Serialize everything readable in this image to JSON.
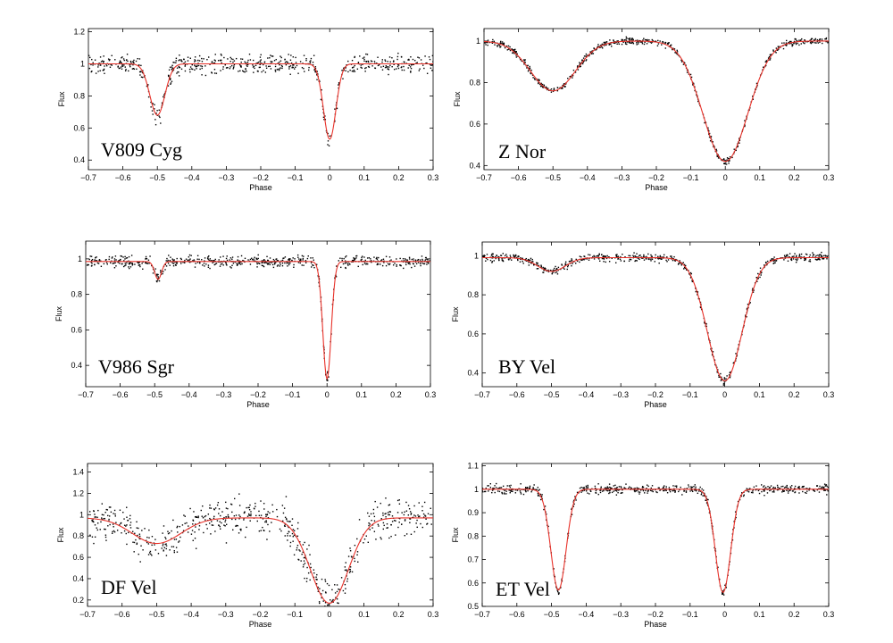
{
  "chart_data": [
    {
      "type": "scatter",
      "label": "V809 Cyg",
      "xlabel": "Phase",
      "ylabel": "Flux",
      "xlim": [
        -0.7,
        0.3
      ],
      "ylim": [
        0.34,
        1.22
      ],
      "xticks": [
        -0.7,
        -0.6,
        -0.5,
        -0.4,
        -0.3,
        -0.2,
        -0.1,
        0,
        0.1,
        0.2,
        0.3
      ],
      "yticks": [
        0.4,
        0.6,
        0.8,
        1,
        1.2
      ],
      "xtick_labels": [
        "−0.7",
        "−0.6",
        "−0.5",
        "−0.4",
        "−0.3",
        "−0.2",
        "−0.1",
        "0",
        "0.1",
        "0.2",
        "0.3"
      ],
      "ytick_labels": [
        "0.4",
        "0.6",
        "0.8",
        "1",
        "1.2"
      ],
      "grid": false,
      "model_color": "#e8322a",
      "marker_color": "#000000",
      "baseline_flux": 1.0,
      "noise_amplitude": 0.055,
      "eclipses": [
        {
          "phase": -0.5,
          "depth": 0.32,
          "width": 0.022
        },
        {
          "phase": 0.0,
          "depth": 0.47,
          "width": 0.018
        }
      ]
    },
    {
      "type": "scatter",
      "label": "Z Nor",
      "xlabel": "Phase",
      "ylabel": "Flux",
      "xlim": [
        -0.7,
        0.3
      ],
      "ylim": [
        0.38,
        1.06
      ],
      "xticks": [
        -0.7,
        -0.6,
        -0.5,
        -0.4,
        -0.3,
        -0.2,
        -0.1,
        0,
        0.1,
        0.2,
        0.3
      ],
      "yticks": [
        0.4,
        0.6,
        0.8,
        1
      ],
      "xtick_labels": [
        "−0.7",
        "−0.6",
        "−0.5",
        "−0.4",
        "−0.3",
        "−0.2",
        "−0.1",
        "0",
        "0.1",
        "0.2",
        "0.3"
      ],
      "ytick_labels": [
        "0.4",
        "0.6",
        "0.8",
        "1"
      ],
      "grid": false,
      "model_color": "#e8322a",
      "marker_color": "#000000",
      "baseline_flux": 1.0,
      "noise_amplitude": 0.015,
      "eclipses": [
        {
          "phase": -0.5,
          "depth": 0.24,
          "width": 0.065
        },
        {
          "phase": 0.0,
          "depth": 0.58,
          "width": 0.065
        }
      ]
    },
    {
      "type": "scatter",
      "label": "V986 Sgr",
      "xlabel": "Phase",
      "ylabel": "Flux",
      "xlim": [
        -0.7,
        0.3
      ],
      "ylim": [
        0.28,
        1.1
      ],
      "xticks": [
        -0.7,
        -0.6,
        -0.5,
        -0.4,
        -0.3,
        -0.2,
        -0.1,
        0,
        0.1,
        0.2,
        0.3
      ],
      "yticks": [
        0.4,
        0.6,
        0.8,
        1
      ],
      "xtick_labels": [
        "−0.7",
        "−0.6",
        "−0.5",
        "−0.4",
        "−0.3",
        "−0.2",
        "−0.1",
        "0",
        "0.1",
        "0.2",
        "0.3"
      ],
      "ytick_labels": [
        "0.4",
        "0.6",
        "0.8",
        "1"
      ],
      "grid": false,
      "model_color": "#e8322a",
      "marker_color": "#000000",
      "baseline_flux": 0.985,
      "noise_amplitude": 0.03,
      "eclipses": [
        {
          "phase": -0.49,
          "depth": 0.1,
          "width": 0.01
        },
        {
          "phase": 0.0,
          "depth": 0.66,
          "width": 0.012
        }
      ]
    },
    {
      "type": "scatter",
      "label": "BY Vel",
      "xlabel": "Phase",
      "ylabel": "Flux",
      "xlim": [
        -0.7,
        0.3
      ],
      "ylim": [
        0.33,
        1.07
      ],
      "xticks": [
        -0.7,
        -0.6,
        -0.5,
        -0.4,
        -0.3,
        -0.2,
        -0.1,
        0,
        0.1,
        0.2,
        0.3
      ],
      "yticks": [
        0.4,
        0.6,
        0.8,
        1
      ],
      "xtick_labels": [
        "−0.7",
        "−0.6",
        "−0.5",
        "−0.4",
        "−0.3",
        "−0.2",
        "−0.1",
        "0",
        "0.1",
        "0.2",
        "0.3"
      ],
      "ytick_labels": [
        "0.4",
        "0.6",
        "0.8",
        "1"
      ],
      "grid": false,
      "model_color": "#e8322a",
      "marker_color": "#000000",
      "baseline_flux": 0.99,
      "noise_amplitude": 0.018,
      "eclipses": [
        {
          "phase": -0.5,
          "depth": 0.07,
          "width": 0.04
        },
        {
          "phase": 0.0,
          "depth": 0.63,
          "width": 0.05
        }
      ]
    },
    {
      "type": "scatter",
      "label": "DF Vel",
      "xlabel": "Phase",
      "ylabel": "Flux",
      "xlim": [
        -0.7,
        0.3
      ],
      "ylim": [
        0.14,
        1.48
      ],
      "xticks": [
        -0.7,
        -0.6,
        -0.5,
        -0.4,
        -0.3,
        -0.2,
        -0.1,
        0,
        0.1,
        0.2,
        0.3
      ],
      "yticks": [
        0.2,
        0.4,
        0.6,
        0.8,
        1,
        1.2,
        1.4
      ],
      "xtick_labels": [
        "−0.7",
        "−0.6",
        "−0.5",
        "−0.4",
        "−0.3",
        "−0.2",
        "−0.1",
        "0",
        "0.1",
        "0.2",
        "0.3"
      ],
      "ytick_labels": [
        "0.2",
        "0.4",
        "0.6",
        "0.8",
        "1",
        "1.2",
        "1.4"
      ],
      "grid": false,
      "model_color": "#e8322a",
      "marker_color": "#000000",
      "baseline_flux": 0.97,
      "noise_amplitude": 0.17,
      "eclipses": [
        {
          "phase": -0.5,
          "depth": 0.24,
          "width": 0.07
        },
        {
          "phase": 0.0,
          "depth": 0.8,
          "width": 0.055
        }
      ]
    },
    {
      "type": "scatter",
      "label": "ET Vel",
      "xlabel": "Phase",
      "ylabel": "Flux",
      "xlim": [
        -0.7,
        0.3
      ],
      "ylim": [
        0.5,
        1.11
      ],
      "xticks": [
        -0.7,
        -0.6,
        -0.5,
        -0.4,
        -0.3,
        -0.2,
        -0.1,
        0,
        0.1,
        0.2,
        0.3
      ],
      "yticks": [
        0.5,
        0.6,
        0.7,
        0.8,
        0.9,
        1,
        1.1
      ],
      "xtick_labels": [
        "−0.7",
        "−0.6",
        "−0.5",
        "−0.4",
        "−0.3",
        "−0.2",
        "−0.1",
        "0",
        "0.1",
        "0.2",
        "0.3"
      ],
      "ytick_labels": [
        "0.5",
        "0.6",
        "0.7",
        "0.8",
        "0.9",
        "1",
        "1.1"
      ],
      "grid": false,
      "model_color": "#e8322a",
      "marker_color": "#000000",
      "baseline_flux": 1.0,
      "noise_amplitude": 0.018,
      "eclipses": [
        {
          "phase": -0.48,
          "depth": 0.43,
          "width": 0.022
        },
        {
          "phase": -0.005,
          "depth": 0.44,
          "width": 0.022
        }
      ]
    }
  ]
}
